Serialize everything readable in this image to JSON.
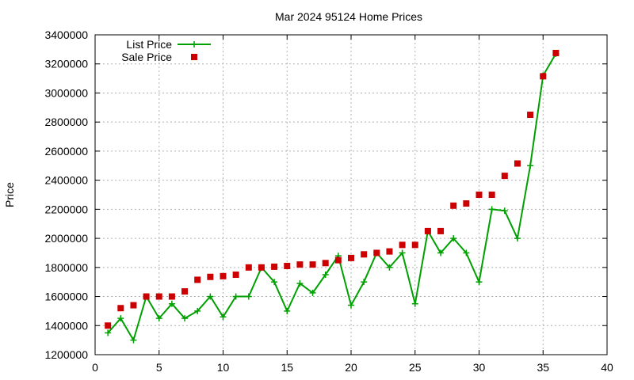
{
  "chart_data": {
    "type": "line",
    "title": "Mar 2024 95124 Home Prices",
    "xlabel": "",
    "ylabel": "Price",
    "xlim": [
      0,
      40
    ],
    "ylim": [
      1200000,
      3400000
    ],
    "x_ticks": [
      0,
      5,
      10,
      15,
      20,
      25,
      30,
      35,
      40
    ],
    "y_ticks": [
      1200000,
      1400000,
      1600000,
      1800000,
      2000000,
      2200000,
      2400000,
      2600000,
      2800000,
      3000000,
      3200000,
      3400000
    ],
    "grid": true,
    "legend_position": "top-left",
    "series": [
      {
        "name": "List Price",
        "style": "line-plus",
        "color": "#00a000",
        "x": [
          1,
          2,
          3,
          4,
          5,
          6,
          7,
          8,
          9,
          10,
          11,
          12,
          13,
          14,
          15,
          16,
          17,
          18,
          19,
          20,
          21,
          22,
          23,
          24,
          25,
          26,
          27,
          28,
          29,
          30,
          31,
          32,
          33,
          34,
          35,
          36
        ],
        "y": [
          1350000,
          1450000,
          1300000,
          1600000,
          1450000,
          1550000,
          1450000,
          1500000,
          1600000,
          1460000,
          1600000,
          1600000,
          1800000,
          1700000,
          1500000,
          1690000,
          1625000,
          1750000,
          1880000,
          1540000,
          1700000,
          1900000,
          1800000,
          1900000,
          1550000,
          2050000,
          1900000,
          2000000,
          1900000,
          1700000,
          2200000,
          2190000,
          2000000,
          2500000,
          3120000,
          3270000
        ]
      },
      {
        "name": "Sale Price",
        "style": "points-square",
        "color": "#cc0000",
        "x": [
          1,
          2,
          3,
          4,
          5,
          6,
          7,
          8,
          9,
          10,
          11,
          12,
          13,
          14,
          15,
          16,
          17,
          18,
          19,
          20,
          21,
          22,
          23,
          24,
          25,
          26,
          27,
          28,
          29,
          30,
          31,
          32,
          33,
          34,
          35,
          36
        ],
        "y": [
          1400000,
          1520000,
          1540000,
          1600000,
          1600000,
          1600000,
          1635000,
          1715000,
          1735000,
          1740000,
          1750000,
          1800000,
          1800000,
          1805000,
          1810000,
          1820000,
          1820000,
          1830000,
          1850000,
          1865000,
          1890000,
          1900000,
          1910000,
          1955000,
          1955000,
          2050000,
          2050000,
          2225000,
          2240000,
          2300000,
          2300000,
          2430000,
          2515000,
          2850000,
          3115000,
          3275000
        ]
      }
    ]
  }
}
